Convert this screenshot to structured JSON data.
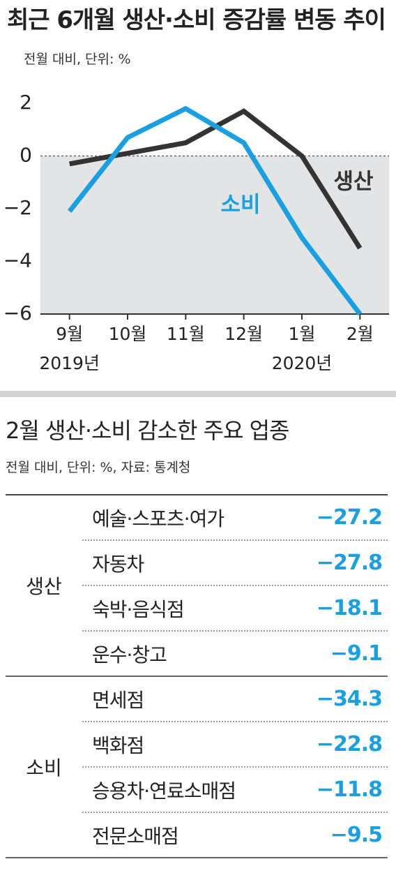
{
  "chart_data": {
    "type": "line",
    "title": "최근 6개월 생산·소비 증감률 변동 추이",
    "subtitle": "전월 대비, 단위: %",
    "categories": [
      "9월",
      "10월",
      "11월",
      "12월",
      "1월",
      "2월"
    ],
    "x_sublabels": [
      "2019년",
      null,
      null,
      null,
      "2020년",
      null
    ],
    "series": [
      {
        "name": "생산",
        "color": "#333333",
        "values": [
          -0.3,
          0.1,
          0.5,
          1.7,
          0,
          -3.5
        ]
      },
      {
        "name": "소비",
        "color": "#1a9fe0",
        "values": [
          -2.1,
          0.7,
          1.8,
          0.5,
          -3.1,
          -6.0
        ]
      }
    ],
    "ylim": [
      -6,
      2.7
    ],
    "yticks": [
      {
        "value": 2,
        "label": "2"
      },
      {
        "value": 0,
        "label": "0"
      },
      {
        "value": -2,
        "label": "−2"
      },
      {
        "value": -4,
        "label": "−4"
      },
      {
        "value": -6,
        "label": "−6"
      }
    ],
    "negative_fill": "#e3e4e5"
  },
  "table": {
    "title": "2월 생산·소비 감소한 주요 업종",
    "subtitle": "전월 대비, 단위: %, 자료: 통계청",
    "groups": [
      {
        "name": "생산",
        "rows": [
          {
            "label": "예술·스포츠·여가",
            "value": "−27.2"
          },
          {
            "label": "자동차",
            "value": "−27.8"
          },
          {
            "label": "숙박·음식점",
            "value": "−18.1"
          },
          {
            "label": "운수·창고",
            "value": "−9.1"
          }
        ]
      },
      {
        "name": "소비",
        "rows": [
          {
            "label": "면세점",
            "value": "−34.3"
          },
          {
            "label": "백화점",
            "value": "−22.8"
          },
          {
            "label": "승용차·연료소매점",
            "value": "−11.8"
          },
          {
            "label": "전문소매점",
            "value": "−9.5"
          }
        ]
      }
    ]
  }
}
